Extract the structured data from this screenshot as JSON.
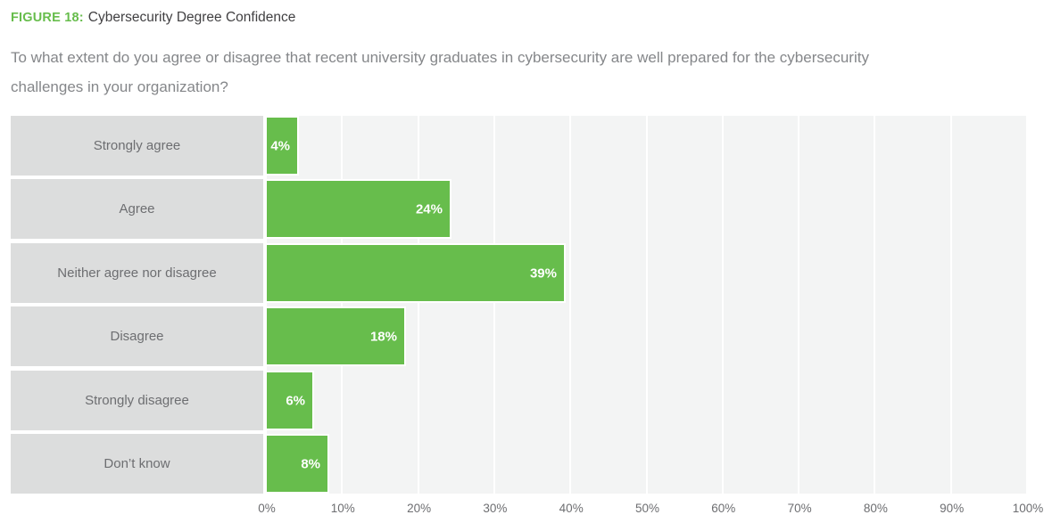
{
  "figure": {
    "label": "FIGURE 18:",
    "title": "Cybersecurity Degree Confidence",
    "subtitle_line1": "To what extent do you agree or disagree that recent university graduates in cybersecurity are well prepared for the cybersecurity",
    "subtitle_line2": "challenges in your organization?"
  },
  "chart_data": {
    "type": "bar",
    "orientation": "horizontal",
    "title": "Cybersecurity Degree Confidence",
    "question": "To what extent do you agree or disagree that recent university graduates in cybersecurity are well prepared for the cybersecurity challenges in your organization?",
    "categories": [
      "Strongly agree",
      "Agree",
      "Neither agree nor disagree",
      "Disagree",
      "Strongly disagree",
      "Don’t know"
    ],
    "values": [
      4,
      24,
      39,
      18,
      6,
      8
    ],
    "value_labels": [
      "4%",
      "24%",
      "39%",
      "18%",
      "6%",
      "8%"
    ],
    "x_ticks": [
      "0%",
      "10%",
      "20%",
      "30%",
      "40%",
      "50%",
      "60%",
      "70%",
      "80%",
      "90%",
      "100%"
    ],
    "xlim": [
      0,
      100
    ],
    "grid": true,
    "legend": false
  },
  "colors": {
    "bar_green": "#67bd4c",
    "figure_label_green": "#67bd4c",
    "category_box_gray": "#dcdddd",
    "plot_background": "#f3f4f4",
    "category_text": "#6d6e71",
    "title_text": "#414042",
    "subtitle_text": "#85878a",
    "axis_text": "#6d6e71",
    "value_label_text": "#ffffff"
  }
}
